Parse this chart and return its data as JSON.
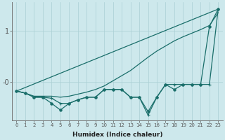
{
  "xlabel": "Humidex (Indice chaleur)",
  "background_color": "#cde8ec",
  "line_color": "#1a6e6a",
  "grid_color": "#aacfd5",
  "xlim": [
    -0.5,
    23.5
  ],
  "ylim": [
    -0.75,
    1.55
  ],
  "ytick_positions": [
    0.0,
    1.0
  ],
  "ytick_labels": [
    "-0",
    "1"
  ],
  "x_ticks": [
    0,
    1,
    2,
    3,
    4,
    5,
    6,
    7,
    8,
    9,
    10,
    11,
    12,
    13,
    14,
    15,
    16,
    17,
    18,
    19,
    20,
    21,
    22,
    23
  ],
  "smooth_line1_x": [
    0,
    23
  ],
  "smooth_line1_y": [
    -0.18,
    1.42
  ],
  "smooth_line2_x": [
    0,
    1,
    2,
    3,
    4,
    5,
    6,
    7,
    8,
    9,
    10,
    11,
    12,
    13,
    14,
    15,
    16,
    17,
    18,
    19,
    20,
    21,
    22,
    23
  ],
  "smooth_line2_y": [
    -0.18,
    -0.22,
    -0.28,
    -0.28,
    -0.28,
    -0.3,
    -0.28,
    -0.24,
    -0.2,
    -0.15,
    -0.08,
    0.02,
    0.12,
    0.22,
    0.35,
    0.48,
    0.6,
    0.7,
    0.8,
    0.88,
    0.95,
    1.02,
    1.1,
    1.35
  ],
  "jagged1_x": [
    0,
    1,
    2,
    3,
    4,
    5,
    6,
    7,
    8,
    9,
    10,
    11,
    12,
    13,
    14,
    15,
    16,
    17,
    18,
    19,
    20,
    21,
    22,
    23
  ],
  "jagged1_y": [
    -0.18,
    -0.22,
    -0.3,
    -0.3,
    -0.42,
    -0.55,
    -0.42,
    -0.35,
    -0.3,
    -0.3,
    -0.15,
    -0.15,
    -0.15,
    -0.3,
    -0.3,
    -0.58,
    -0.3,
    -0.05,
    -0.15,
    -0.05,
    -0.05,
    -0.05,
    1.08,
    1.42
  ],
  "jagged2_x": [
    0,
    1,
    2,
    3,
    4,
    5,
    6,
    7,
    8,
    9,
    10,
    11,
    12,
    13,
    14,
    15,
    16,
    17,
    18,
    19,
    20,
    21,
    22,
    23
  ],
  "jagged2_y": [
    -0.18,
    -0.22,
    -0.3,
    -0.3,
    -0.32,
    -0.42,
    -0.42,
    -0.35,
    -0.3,
    -0.3,
    -0.15,
    -0.15,
    -0.15,
    -0.3,
    -0.3,
    -0.65,
    -0.3,
    -0.05,
    -0.05,
    -0.05,
    -0.05,
    -0.05,
    -0.05,
    1.42
  ]
}
